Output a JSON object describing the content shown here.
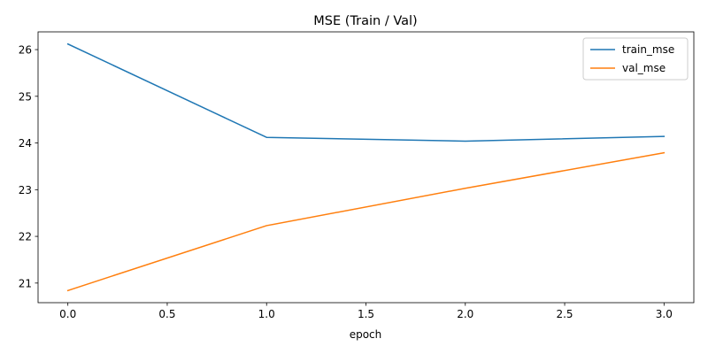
{
  "chart_data": {
    "type": "line",
    "title": "MSE (Train / Val)",
    "xlabel": "epoch",
    "ylabel": "",
    "x": [
      0,
      1,
      2,
      3
    ],
    "xlim": [
      -0.15,
      3.15
    ],
    "ylim": [
      20.58,
      26.38
    ],
    "xticks": [
      "0.0",
      "0.5",
      "1.0",
      "1.5",
      "2.0",
      "2.5",
      "3.0"
    ],
    "yticks": [
      "21",
      "22",
      "23",
      "24",
      "25",
      "26"
    ],
    "grid": false,
    "legend_position": "top-right",
    "series": [
      {
        "name": "train_mse",
        "color": "#1f77b4",
        "values": [
          26.12,
          24.12,
          24.04,
          24.14
        ]
      },
      {
        "name": "val_mse",
        "color": "#ff7f0e",
        "values": [
          20.84,
          22.23,
          23.03,
          23.79
        ]
      }
    ]
  }
}
